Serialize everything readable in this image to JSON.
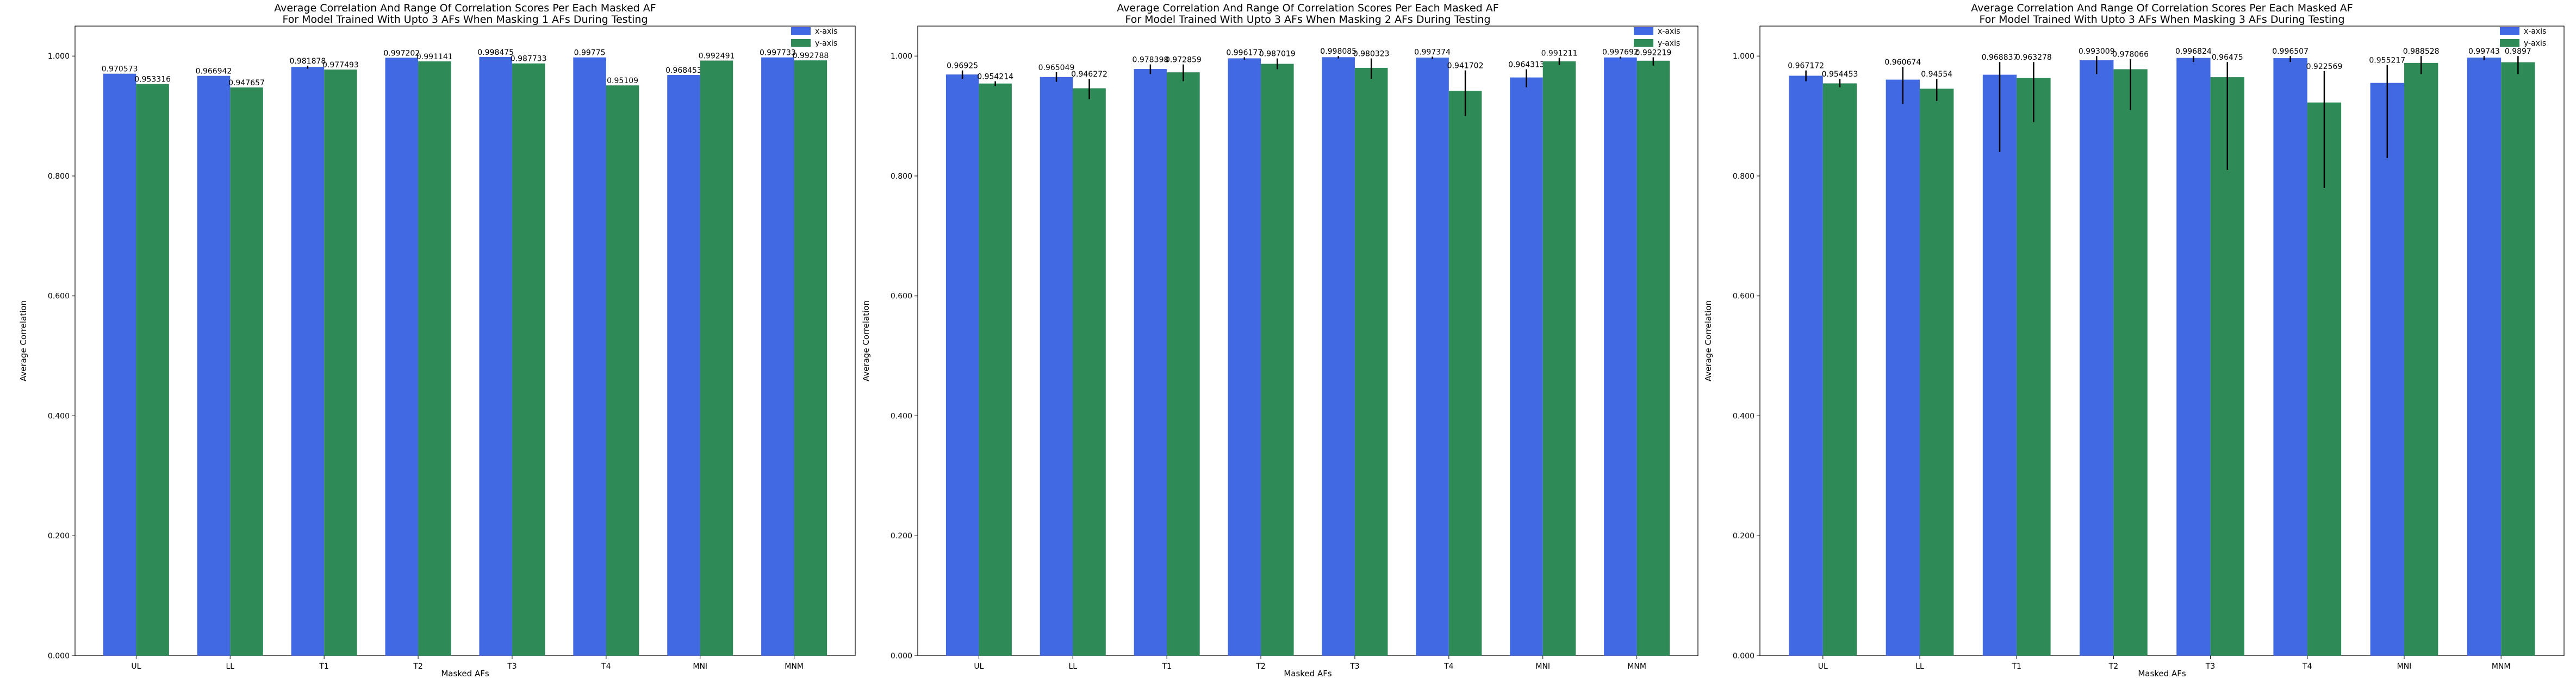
{
  "chart_data": [
    {
      "type": "bar",
      "title": "Average Correlation And Range Of Correlation Scores Per Each Masked AF",
      "subtitle": "For Model Trained With Upto 3 AFs When Masking 1 AFs During Testing",
      "xlabel": "Masked AFs",
      "ylabel": "Average Correlation",
      "ylim": [
        0,
        1.05
      ],
      "yticks": [
        "0.000",
        "0.200",
        "0.400",
        "0.600",
        "0.800",
        "1.000"
      ],
      "legend_position": "top-right",
      "categories": [
        "UL",
        "LL",
        "T1",
        "T2",
        "T3",
        "T4",
        "MNI",
        "MNM"
      ],
      "series": [
        {
          "name": "x-axis",
          "color": "#4169E1",
          "values": [
            0.970573,
            0.966942,
            0.981878,
            0.997202,
            0.998475,
            0.99775,
            0.968453,
            0.997733
          ],
          "labels": [
            "0.970573",
            "0.966942",
            "0.981878",
            "0.997202",
            "0.998475",
            "0.99775",
            "0.968453",
            "0.997733"
          ],
          "err_low": [
            0.970573,
            0.966942,
            0.979,
            0.997202,
            0.998475,
            0.99775,
            0.968453,
            0.997733
          ],
          "err_high": [
            0.970573,
            0.966942,
            0.984,
            0.997202,
            0.998475,
            0.99775,
            0.968453,
            0.997733
          ]
        },
        {
          "name": "y-axis",
          "color": "#2E8B57",
          "values": [
            0.953316,
            0.947657,
            0.977493,
            0.991141,
            0.987733,
            0.95109,
            0.992491,
            0.992788
          ],
          "labels": [
            "0.953316",
            "0.947657",
            "0.977493",
            "0.991141",
            "0.987733",
            "0.95109",
            "0.992491",
            "0.992788"
          ],
          "err_low": [
            0.953316,
            0.947657,
            0.977493,
            0.991141,
            0.987733,
            0.95109,
            0.992491,
            0.992788
          ],
          "err_high": [
            0.953316,
            0.947657,
            0.977493,
            0.991141,
            0.987733,
            0.95109,
            0.992491,
            0.992788
          ]
        }
      ]
    },
    {
      "type": "bar",
      "title": "Average Correlation And Range Of Correlation Scores Per Each Masked AF",
      "subtitle": "For Model Trained With Upto 3 AFs When Masking 2 AFs During Testing",
      "xlabel": "Masked AFs",
      "ylabel": "Average Correlation",
      "ylim": [
        0,
        1.05
      ],
      "yticks": [
        "0.000",
        "0.200",
        "0.400",
        "0.600",
        "0.800",
        "1.000"
      ],
      "legend_position": "top-right",
      "categories": [
        "UL",
        "LL",
        "T1",
        "T2",
        "T3",
        "T4",
        "MNI",
        "MNM"
      ],
      "series": [
        {
          "name": "x-axis",
          "color": "#4169E1",
          "values": [
            0.96925,
            0.965049,
            0.978398,
            0.996177,
            0.998085,
            0.997374,
            0.964313,
            0.997692
          ],
          "labels": [
            "0.96925",
            "0.965049",
            "0.978398",
            "0.996177",
            "0.998085",
            "0.997374",
            "0.964313",
            "0.997692"
          ],
          "err_low": [
            0.962,
            0.957,
            0.97,
            0.994,
            0.996,
            0.995,
            0.948,
            0.996
          ],
          "err_high": [
            0.976,
            0.973,
            0.986,
            0.998,
            1.0,
            0.999,
            0.978,
            0.999
          ]
        },
        {
          "name": "y-axis",
          "color": "#2E8B57",
          "values": [
            0.954214,
            0.946272,
            0.972859,
            0.987019,
            0.980323,
            0.941702,
            0.991211,
            0.992219
          ],
          "labels": [
            "0.954214",
            "0.946272",
            "0.972859",
            "0.987019",
            "0.980323",
            "0.941702",
            "0.991211",
            "0.992219"
          ],
          "err_low": [
            0.95,
            0.928,
            0.958,
            0.978,
            0.962,
            0.9,
            0.985,
            0.984
          ],
          "err_high": [
            0.958,
            0.962,
            0.986,
            0.996,
            0.996,
            0.976,
            0.997,
            0.998
          ]
        }
      ]
    },
    {
      "type": "bar",
      "title": "Average Correlation And Range Of Correlation Scores Per Each Masked AF",
      "subtitle": "For Model Trained With Upto 3 AFs When Masking 3 AFs During Testing",
      "xlabel": "Masked AFs",
      "ylabel": "Average Correlation",
      "ylim": [
        0,
        1.05
      ],
      "yticks": [
        "0.000",
        "0.200",
        "0.400",
        "0.600",
        "0.800",
        "1.000"
      ],
      "legend_position": "top-right",
      "categories": [
        "UL",
        "LL",
        "T1",
        "T2",
        "T3",
        "T4",
        "MNI",
        "MNM"
      ],
      "series": [
        {
          "name": "x-axis",
          "color": "#4169E1",
          "values": [
            0.967172,
            0.960674,
            0.968837,
            0.993009,
            0.996824,
            0.996507,
            0.955217,
            0.99743
          ],
          "labels": [
            "0.967172",
            "0.960674",
            "0.968837",
            "0.993009",
            "0.996824",
            "0.996507",
            "0.955217",
            "0.99743"
          ],
          "err_low": [
            0.958,
            0.92,
            0.84,
            0.97,
            0.99,
            0.99,
            0.83,
            0.993
          ],
          "err_high": [
            0.976,
            0.982,
            0.99,
            1.0,
            1.0,
            1.0,
            0.985,
            1.0
          ]
        },
        {
          "name": "y-axis",
          "color": "#2E8B57",
          "values": [
            0.954453,
            0.94554,
            0.963278,
            0.978066,
            0.96475,
            0.922569,
            0.988528,
            0.9897
          ],
          "labels": [
            "0.954453",
            "0.94554",
            "0.963278",
            "0.978066",
            "0.96475",
            "0.922569",
            "0.988528",
            "0.9897"
          ],
          "err_low": [
            0.948,
            0.925,
            0.89,
            0.91,
            0.81,
            0.78,
            0.97,
            0.97
          ],
          "err_high": [
            0.962,
            0.962,
            0.99,
            0.995,
            0.99,
            0.975,
            1.0,
            1.0
          ]
        }
      ]
    }
  ]
}
